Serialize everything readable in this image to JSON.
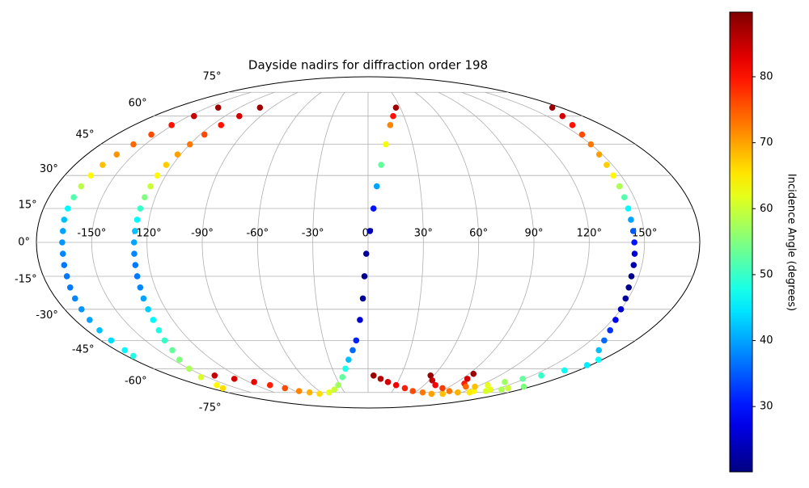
{
  "chart_data": {
    "type": "scatter",
    "projection": "mollweide",
    "title": "Dayside nadirs for diffraction order 198",
    "colorbar_label": "Incidence Angle (degrees)",
    "cmap": "jet",
    "clim": [
      20.1,
      89.8
    ],
    "cticks": [
      30,
      40,
      50,
      60,
      70,
      80
    ],
    "grid": true,
    "xticks": [
      {
        "value": -150,
        "label": "-150°"
      },
      {
        "value": -120,
        "label": "-120°"
      },
      {
        "value": -90,
        "label": "-90°"
      },
      {
        "value": -60,
        "label": "-60°"
      },
      {
        "value": -30,
        "label": "-30°"
      },
      {
        "value": 0,
        "label": "0°"
      },
      {
        "value": 30,
        "label": "30°"
      },
      {
        "value": 60,
        "label": "60°"
      },
      {
        "value": 90,
        "label": "90°"
      },
      {
        "value": 120,
        "label": "120°"
      },
      {
        "value": 150,
        "label": "150°"
      }
    ],
    "yticks": [
      {
        "value": -75,
        "label": "-75°"
      },
      {
        "value": -60,
        "label": "-60°"
      },
      {
        "value": -45,
        "label": "-45°"
      },
      {
        "value": -30,
        "label": "-30°"
      },
      {
        "value": -15,
        "label": "-15°"
      },
      {
        "value": 0,
        "label": "0°"
      },
      {
        "value": 15,
        "label": "15°"
      },
      {
        "value": 30,
        "label": "30°"
      },
      {
        "value": 45,
        "label": "45°"
      },
      {
        "value": 60,
        "label": "60°"
      },
      {
        "value": 75,
        "label": "75°"
      }
    ],
    "series": [
      {
        "x": [
          -140,
          -146,
          -151,
          -155,
          -158,
          -161,
          -163,
          -164.5,
          -165.5,
          -166,
          -166.5,
          -166.5,
          -166,
          -166,
          -166,
          -166.5,
          -167,
          -168,
          -169,
          -170,
          -171,
          -172,
          -173,
          -174,
          -175
        ],
        "y": [
          65,
          60,
          55,
          50,
          45,
          40,
          35,
          30,
          25,
          20,
          15,
          10,
          5,
          0,
          -5,
          -10,
          -15,
          -20,
          -25,
          -30,
          -35,
          -40,
          -45,
          -50,
          -53
        ],
        "values": [
          88,
          85,
          80,
          76,
          74,
          71,
          68,
          64,
          59,
          52,
          46,
          42,
          40,
          39,
          38,
          37,
          37,
          37,
          38,
          39,
          40,
          42,
          44,
          46,
          48
        ]
      },
      {
        "x": [
          -101,
          -108,
          -113,
          -117,
          -120,
          -122,
          -124,
          -125,
          -125.5,
          -126,
          -126.3,
          -126.5,
          -126.8,
          -127,
          -127.2,
          -127.5,
          -128,
          -128.5,
          -129.5,
          -130.5,
          -132,
          -134,
          -137,
          -140,
          -145,
          -150,
          -156,
          -162,
          -166
        ],
        "y": [
          65,
          60,
          55,
          50,
          45,
          40,
          35,
          30,
          25,
          20,
          15,
          10,
          5,
          0,
          -5,
          -10,
          -15,
          -20,
          -25,
          -30,
          -35,
          -40,
          -45,
          -50,
          -55,
          -60,
          -65,
          -70,
          -72
        ],
        "values": [
          88,
          84,
          80,
          76,
          73,
          70,
          67,
          64,
          60,
          55,
          50,
          46,
          42,
          40,
          38,
          37,
          37,
          38,
          40,
          43,
          46,
          48,
          50,
          53,
          55,
          58,
          61,
          64,
          66
        ]
      },
      {
        "x": [
          -140,
          -128,
          -115,
          -105,
          -95,
          -85,
          -75,
          -65,
          -50,
          -40,
          -32,
          -24,
          -19,
          -15,
          -11,
          -8,
          -5,
          -3,
          -2,
          -1,
          1,
          3,
          5,
          8,
          12,
          17,
          21,
          26
        ],
        "y": [
          -64,
          -66,
          -68,
          -70,
          -72,
          -74,
          -75,
          -76,
          -75,
          -73,
          -70,
          -65,
          -60,
          -55,
          -50,
          -45,
          -35,
          -25,
          -15,
          -5,
          5,
          15,
          25,
          35,
          45,
          55,
          60,
          65
        ],
        "values": [
          85,
          84,
          82,
          79,
          76,
          72,
          69,
          66,
          62,
          60,
          57,
          53,
          48,
          42,
          36,
          31,
          26,
          22,
          21,
          22,
          24,
          30,
          40,
          53,
          63,
          72,
          80,
          88
        ]
      },
      {
        "x": [
          5,
          12,
          20,
          30,
          42,
          55,
          70,
          85,
          100,
          115,
          130,
          145,
          160
        ],
        "y": [
          -64,
          -66,
          -68,
          -70,
          -72,
          -74,
          -75,
          -76,
          -76,
          -75,
          -74,
          -73,
          -72
        ],
        "values": [
          88,
          86,
          84,
          82,
          79,
          76,
          73,
          70,
          68,
          66,
          64,
          62,
          60
        ]
      },
      {
        "x": [
          57,
          63,
          72,
          85,
          100,
          115,
          130,
          145,
          158,
          172
        ],
        "y": [
          -64,
          -67,
          -70,
          -72,
          -74,
          -75,
          -75,
          -74,
          -73,
          -71
        ],
        "values": [
          88,
          85,
          81,
          77,
          73,
          69,
          65,
          61,
          58,
          55
        ]
      },
      {
        "x": [
          94,
          95,
          100,
          108,
          118,
          128,
          138,
          148,
          158,
          168,
          177
        ],
        "y": [
          -63,
          -66,
          -69,
          -71,
          -71,
          -70,
          -68,
          -66,
          -64,
          -61,
          -58
        ],
        "values": [
          88,
          84,
          79,
          74,
          68,
          62,
          57,
          53,
          50,
          47,
          45
        ]
      },
      {
        "x": [
          172,
          163,
          157,
          153,
          150,
          148,
          146.5,
          145.5,
          145,
          144.5,
          144.2,
          144,
          144.2,
          144.5,
          145,
          145.5,
          146,
          147,
          148.5,
          150,
          152,
          155,
          159,
          165,
          177
        ],
        "y": [
          65,
          60,
          55,
          50,
          45,
          40,
          35,
          30,
          25,
          20,
          15,
          10,
          5,
          0,
          -5,
          -10,
          -15,
          -20,
          -25,
          -30,
          -35,
          -40,
          -45,
          -50,
          -55
        ],
        "values": [
          88,
          84,
          80,
          76,
          73,
          70,
          67,
          64,
          58,
          52,
          46,
          40,
          35,
          30,
          26,
          23,
          21,
          21,
          22,
          25,
          28,
          32,
          36,
          42,
          47
        ]
      }
    ]
  }
}
